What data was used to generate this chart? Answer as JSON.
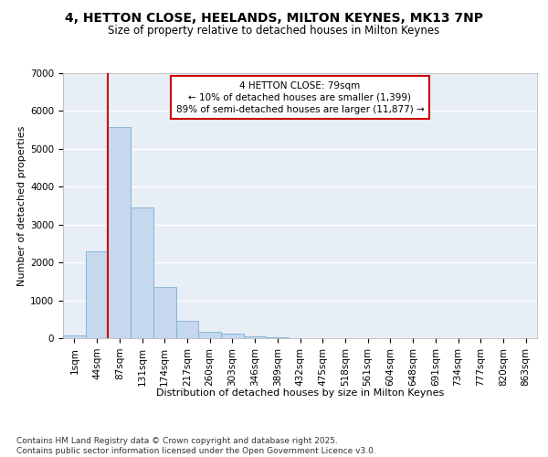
{
  "title_line1": "4, HETTON CLOSE, HEELANDS, MILTON KEYNES, MK13 7NP",
  "title_line2": "Size of property relative to detached houses in Milton Keynes",
  "xlabel": "Distribution of detached houses by size in Milton Keynes",
  "ylabel": "Number of detached properties",
  "categories": [
    "1sqm",
    "44sqm",
    "87sqm",
    "131sqm",
    "174sqm",
    "217sqm",
    "260sqm",
    "303sqm",
    "346sqm",
    "389sqm",
    "432sqm",
    "475sqm",
    "518sqm",
    "561sqm",
    "604sqm",
    "648sqm",
    "691sqm",
    "734sqm",
    "777sqm",
    "820sqm",
    "863sqm"
  ],
  "values": [
    75,
    2300,
    5580,
    3450,
    1350,
    460,
    165,
    115,
    55,
    20,
    5,
    0,
    0,
    0,
    0,
    0,
    0,
    0,
    0,
    0,
    0
  ],
  "bar_color": "#c5d8ee",
  "bar_edgecolor": "#7aafd4",
  "bg_color": "#e8eef6",
  "grid_color": "#ffffff",
  "vline_color": "#cc0000",
  "vline_position": 1.5,
  "annotation_text": "4 HETTON CLOSE: 79sqm\n← 10% of detached houses are smaller (1,399)\n89% of semi-detached houses are larger (11,877) →",
  "annotation_box_color": "#cc0000",
  "footer_line1": "Contains HM Land Registry data © Crown copyright and database right 2025.",
  "footer_line2": "Contains public sector information licensed under the Open Government Licence v3.0.",
  "ylim_max": 7000,
  "yticks": [
    0,
    1000,
    2000,
    3000,
    4000,
    5000,
    6000,
    7000
  ],
  "title_fontsize": 10,
  "subtitle_fontsize": 8.5,
  "xlabel_fontsize": 8,
  "ylabel_fontsize": 8,
  "tick_fontsize": 7.5,
  "annotation_fontsize": 7.5,
  "footer_fontsize": 6.5
}
